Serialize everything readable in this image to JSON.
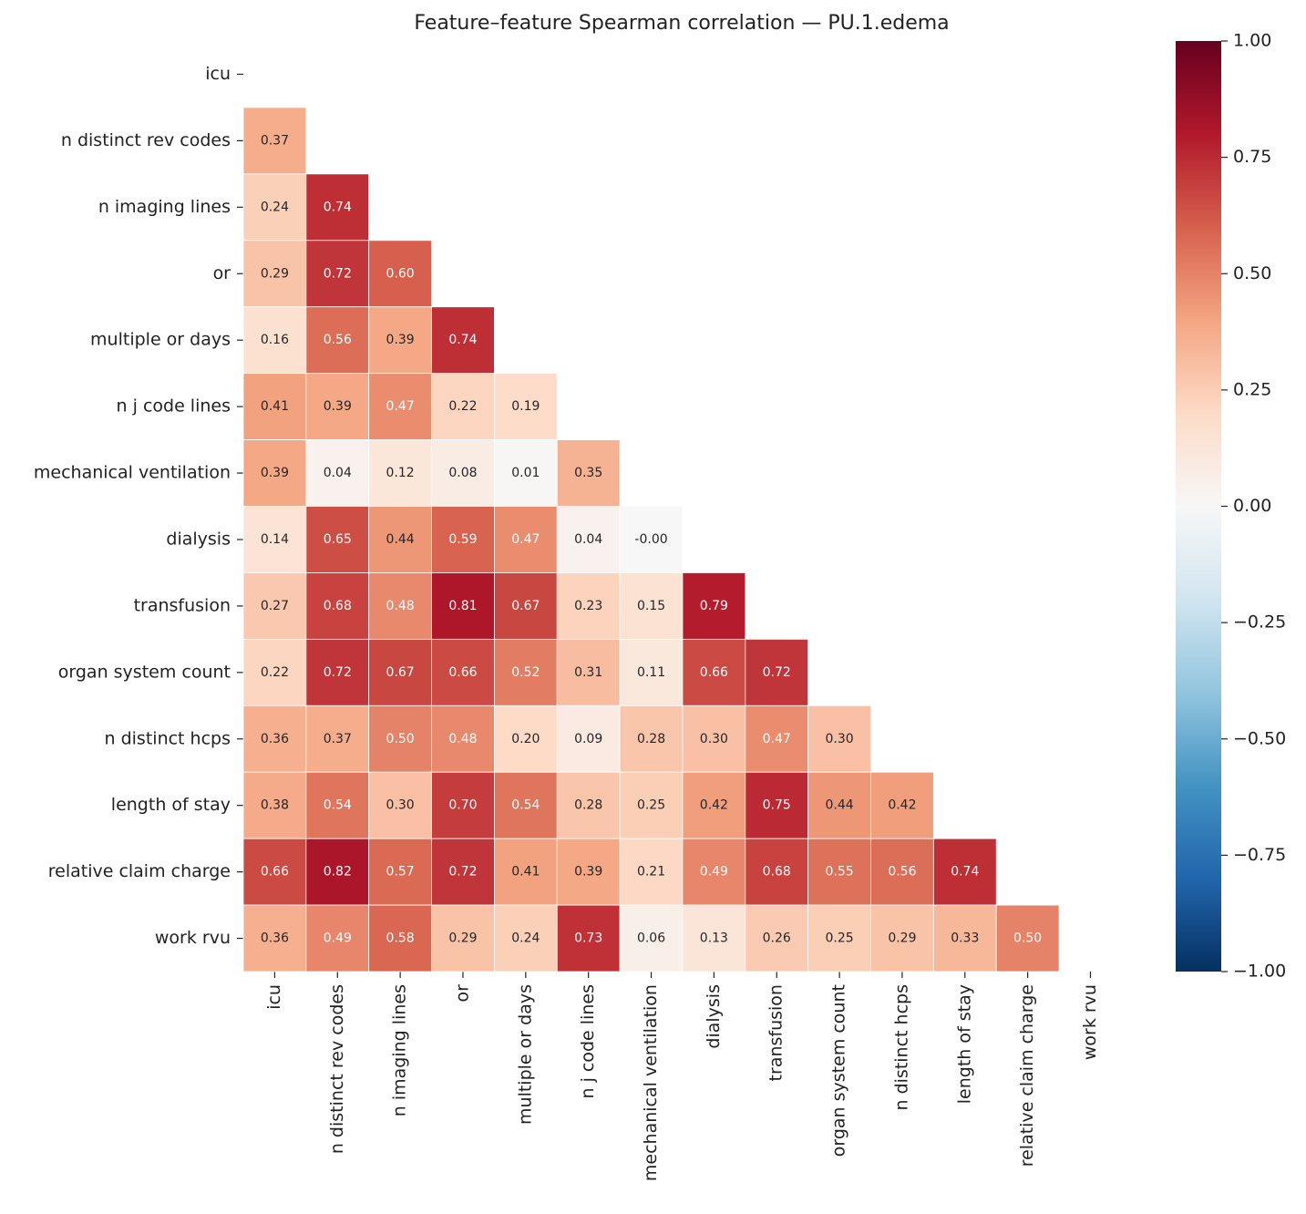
{
  "chart_data": {
    "type": "heatmap",
    "title": "Feature–feature Spearman correlation — PU.1.edema",
    "categories": [
      "icu",
      "n distinct rev codes",
      "n imaging lines",
      "or",
      "multiple or days",
      "n j code lines",
      "mechanical ventilation",
      "dialysis",
      "transfusion",
      "organ system count",
      "n distinct hcps",
      "length of stay",
      "relative claim charge",
      "work rvu"
    ],
    "colormap": "RdBu_r",
    "zlim": [
      -1,
      1
    ],
    "zticks": [
      {
        "value": 1,
        "label": "1.00"
      },
      {
        "value": 0.75,
        "label": "0.75"
      },
      {
        "value": 0.5,
        "label": "0.50"
      },
      {
        "value": 0.25,
        "label": "0.25"
      },
      {
        "value": 0,
        "label": "0.00"
      },
      {
        "value": -0.25,
        "label": "−0.25"
      },
      {
        "value": -0.5,
        "label": "−0.50"
      },
      {
        "value": -0.75,
        "label": "−0.75"
      },
      {
        "value": -1,
        "label": "−1.00"
      }
    ],
    "values": [
      [
        null,
        null,
        null,
        null,
        null,
        null,
        null,
        null,
        null,
        null,
        null,
        null,
        null,
        null
      ],
      [
        0.37,
        null,
        null,
        null,
        null,
        null,
        null,
        null,
        null,
        null,
        null,
        null,
        null,
        null
      ],
      [
        0.24,
        0.74,
        null,
        null,
        null,
        null,
        null,
        null,
        null,
        null,
        null,
        null,
        null,
        null
      ],
      [
        0.29,
        0.72,
        0.6,
        null,
        null,
        null,
        null,
        null,
        null,
        null,
        null,
        null,
        null,
        null
      ],
      [
        0.16,
        0.56,
        0.39,
        0.74,
        null,
        null,
        null,
        null,
        null,
        null,
        null,
        null,
        null,
        null
      ],
      [
        0.41,
        0.39,
        0.47,
        0.22,
        0.19,
        null,
        null,
        null,
        null,
        null,
        null,
        null,
        null,
        null
      ],
      [
        0.39,
        0.04,
        0.12,
        0.08,
        0.01,
        0.35,
        null,
        null,
        null,
        null,
        null,
        null,
        null,
        null
      ],
      [
        0.14,
        0.65,
        0.44,
        0.59,
        0.47,
        0.04,
        -0.001,
        null,
        null,
        null,
        null,
        null,
        null,
        null
      ],
      [
        0.27,
        0.68,
        0.48,
        0.81,
        0.67,
        0.23,
        0.15,
        0.79,
        null,
        null,
        null,
        null,
        null,
        null
      ],
      [
        0.22,
        0.72,
        0.67,
        0.66,
        0.52,
        0.31,
        0.11,
        0.66,
        0.72,
        null,
        null,
        null,
        null,
        null
      ],
      [
        0.36,
        0.37,
        0.5,
        0.48,
        0.2,
        0.09,
        0.28,
        0.3,
        0.47,
        0.3,
        null,
        null,
        null,
        null
      ],
      [
        0.38,
        0.54,
        0.3,
        0.7,
        0.54,
        0.28,
        0.25,
        0.42,
        0.75,
        0.44,
        0.42,
        null,
        null,
        null
      ],
      [
        0.66,
        0.82,
        0.57,
        0.72,
        0.41,
        0.39,
        0.21,
        0.49,
        0.68,
        0.55,
        0.56,
        0.74,
        null,
        null
      ],
      [
        0.36,
        0.49,
        0.58,
        0.29,
        0.24,
        0.73,
        0.06,
        0.13,
        0.26,
        0.25,
        0.29,
        0.33,
        0.5,
        null
      ]
    ],
    "value_labels": [
      [
        null,
        null,
        null,
        null,
        null,
        null,
        null,
        null,
        null,
        null,
        null,
        null,
        null,
        null
      ],
      [
        "0.37",
        null,
        null,
        null,
        null,
        null,
        null,
        null,
        null,
        null,
        null,
        null,
        null,
        null
      ],
      [
        "0.24",
        "0.74",
        null,
        null,
        null,
        null,
        null,
        null,
        null,
        null,
        null,
        null,
        null,
        null
      ],
      [
        "0.29",
        "0.72",
        "0.60",
        null,
        null,
        null,
        null,
        null,
        null,
        null,
        null,
        null,
        null,
        null
      ],
      [
        "0.16",
        "0.56",
        "0.39",
        "0.74",
        null,
        null,
        null,
        null,
        null,
        null,
        null,
        null,
        null,
        null
      ],
      [
        "0.41",
        "0.39",
        "0.47",
        "0.22",
        "0.19",
        null,
        null,
        null,
        null,
        null,
        null,
        null,
        null,
        null
      ],
      [
        "0.39",
        "0.04",
        "0.12",
        "0.08",
        "0.01",
        "0.35",
        null,
        null,
        null,
        null,
        null,
        null,
        null,
        null
      ],
      [
        "0.14",
        "0.65",
        "0.44",
        "0.59",
        "0.47",
        "0.04",
        "-0.00",
        null,
        null,
        null,
        null,
        null,
        null,
        null
      ],
      [
        "0.27",
        "0.68",
        "0.48",
        "0.81",
        "0.67",
        "0.23",
        "0.15",
        "0.79",
        null,
        null,
        null,
        null,
        null,
        null
      ],
      [
        "0.22",
        "0.72",
        "0.67",
        "0.66",
        "0.52",
        "0.31",
        "0.11",
        "0.66",
        "0.72",
        null,
        null,
        null,
        null,
        null
      ],
      [
        "0.36",
        "0.37",
        "0.50",
        "0.48",
        "0.20",
        "0.09",
        "0.28",
        "0.30",
        "0.47",
        "0.30",
        null,
        null,
        null,
        null
      ],
      [
        "0.38",
        "0.54",
        "0.30",
        "0.70",
        "0.54",
        "0.28",
        "0.25",
        "0.42",
        "0.75",
        "0.44",
        "0.42",
        null,
        null,
        null
      ],
      [
        "0.66",
        "0.82",
        "0.57",
        "0.72",
        "0.41",
        "0.39",
        "0.21",
        "0.49",
        "0.68",
        "0.55",
        "0.56",
        "0.74",
        null,
        null
      ],
      [
        "0.36",
        "0.49",
        "0.58",
        "0.29",
        "0.24",
        "0.73",
        "0.06",
        "0.13",
        "0.26",
        "0.25",
        "0.29",
        "0.33",
        "0.50",
        null
      ]
    ]
  }
}
